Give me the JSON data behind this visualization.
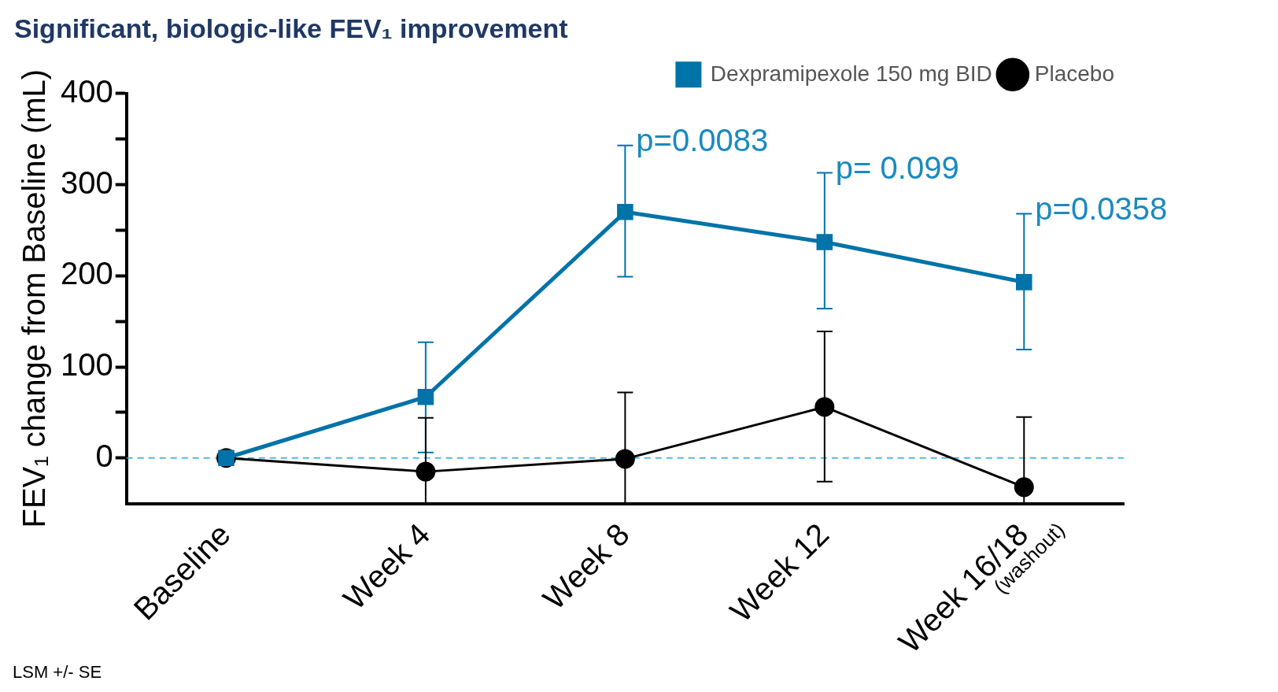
{
  "chart_data": {
    "type": "line",
    "title": "Significant, biologic-like FEV₁ improvement",
    "ylabel": "FEV₁ change from Baseline (mL)",
    "categories": [
      "Baseline",
      "Week 4",
      "Week 8",
      "Week 12",
      "Week 16/18"
    ],
    "series": [
      {
        "name": "Dexpramipexole 150 mg BID",
        "color": "#0073a8",
        "marker": "square",
        "values": [
          0,
          67,
          270,
          237,
          193
        ],
        "errors": [
          null,
          [
            6,
            127
          ],
          [
            199,
            343
          ],
          [
            164,
            313
          ],
          [
            119,
            268
          ]
        ]
      },
      {
        "name": "Placebo",
        "color": "#000000",
        "marker": "circle",
        "values": [
          0,
          -15,
          -1,
          56,
          -32
        ],
        "errors": [
          null,
          [
            -50,
            44
          ],
          [
            -50,
            72
          ],
          [
            -26,
            139
          ],
          [
            -50,
            45
          ]
        ]
      }
    ],
    "ylim": [
      -50,
      400
    ],
    "yticks": [
      0,
      {
        "value": 50,
        "label": null
      },
      100,
      {
        "value": 150,
        "label": null
      },
      200,
      {
        "value": 250,
        "label": null
      },
      300,
      {
        "value": 350,
        "label": null
      },
      400
    ],
    "ref_lines": [
      {
        "axis": "y",
        "value": 0,
        "color": "#29a9e0",
        "line_style": "dashed"
      }
    ],
    "annotations": [
      {
        "text": "p=0.0083",
        "x": "Week 8",
        "y": 343
      },
      {
        "text": "p= 0.099",
        "x": "Week 12",
        "y": 313
      },
      {
        "text": "p=0.0358",
        "x": "Week 16/18",
        "y": 268
      },
      "LSM +/- SE",
      "(washout)"
    ],
    "legend": "top right",
    "grid": false,
    "line_style": "solid"
  }
}
